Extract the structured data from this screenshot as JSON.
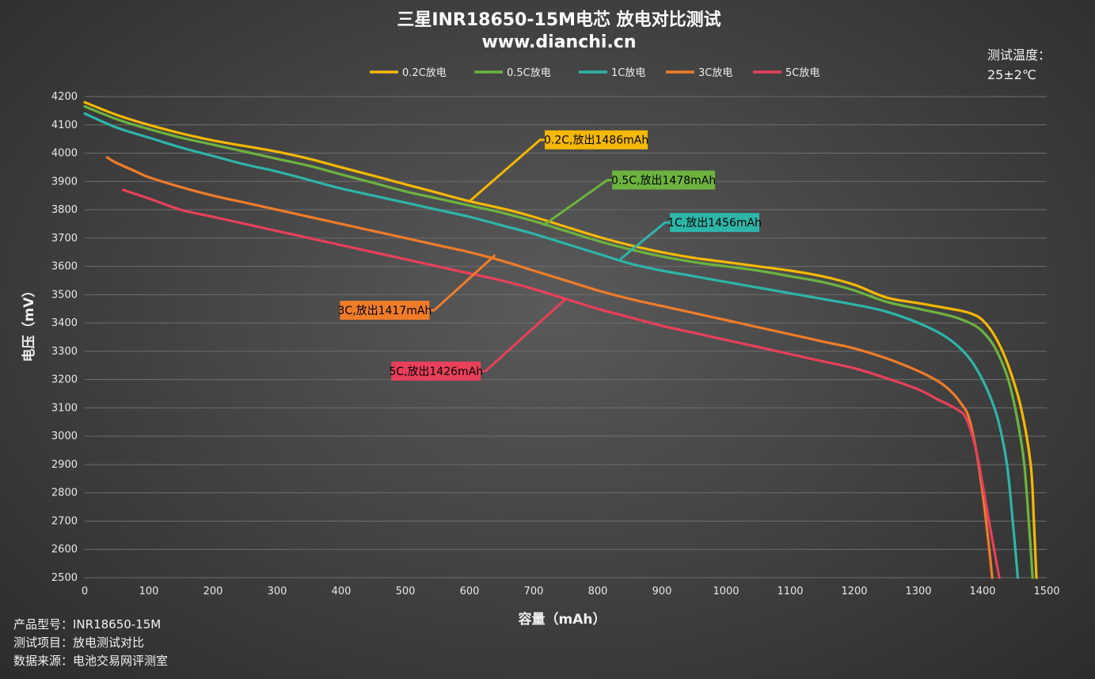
{
  "chart_data": {
    "type": "line",
    "title": "三星INR18650-15M电芯 放电对比测试",
    "subtitle": "www.dianchi.cn",
    "xlabel": "容量（mAh）",
    "ylabel": "电压（mV）",
    "xlim": [
      0,
      1500
    ],
    "ylim": [
      2500,
      4200
    ],
    "x_ticks": [
      "0",
      "100",
      "200",
      "300",
      "400",
      "500",
      "600",
      "700",
      "800",
      "900",
      "1000",
      "1100",
      "1200",
      "1300",
      "1400",
      "1500"
    ],
    "y_ticks": [
      "2500",
      "2600",
      "2700",
      "2800",
      "2900",
      "3000",
      "3100",
      "3200",
      "3300",
      "3400",
      "3500",
      "3600",
      "3700",
      "3800",
      "3900",
      "4000",
      "4100",
      "4200"
    ],
    "grid": "horizontal",
    "legend_position": "top-center",
    "series": [
      {
        "name": "0.2C放电",
        "color": "#f5b800",
        "callout": "0.2C,放出1486mAh",
        "points": [
          [
            0,
            4180
          ],
          [
            50,
            4135
          ],
          [
            100,
            4100
          ],
          [
            150,
            4070
          ],
          [
            200,
            4045
          ],
          [
            250,
            4025
          ],
          [
            300,
            4005
          ],
          [
            350,
            3980
          ],
          [
            400,
            3950
          ],
          [
            450,
            3920
          ],
          [
            500,
            3890
          ],
          [
            550,
            3860
          ],
          [
            600,
            3830
          ],
          [
            650,
            3805
          ],
          [
            700,
            3775
          ],
          [
            750,
            3740
          ],
          [
            800,
            3705
          ],
          [
            850,
            3675
          ],
          [
            900,
            3650
          ],
          [
            950,
            3630
          ],
          [
            1000,
            3615
          ],
          [
            1050,
            3600
          ],
          [
            1100,
            3585
          ],
          [
            1150,
            3565
          ],
          [
            1200,
            3535
          ],
          [
            1250,
            3490
          ],
          [
            1300,
            3470
          ],
          [
            1350,
            3450
          ],
          [
            1380,
            3435
          ],
          [
            1400,
            3410
          ],
          [
            1420,
            3350
          ],
          [
            1440,
            3250
          ],
          [
            1460,
            3100
          ],
          [
            1475,
            2900
          ],
          [
            1480,
            2700
          ],
          [
            1484,
            2500
          ]
        ]
      },
      {
        "name": "0.5C放电",
        "color": "#6db33f",
        "callout": "0.5C,放出1478mAh",
        "points": [
          [
            0,
            4165
          ],
          [
            50,
            4120
          ],
          [
            100,
            4085
          ],
          [
            150,
            4055
          ],
          [
            200,
            4030
          ],
          [
            250,
            4005
          ],
          [
            300,
            3980
          ],
          [
            350,
            3955
          ],
          [
            400,
            3925
          ],
          [
            450,
            3895
          ],
          [
            500,
            3865
          ],
          [
            550,
            3840
          ],
          [
            600,
            3815
          ],
          [
            650,
            3790
          ],
          [
            700,
            3760
          ],
          [
            750,
            3725
          ],
          [
            800,
            3690
          ],
          [
            850,
            3660
          ],
          [
            900,
            3635
          ],
          [
            950,
            3615
          ],
          [
            1000,
            3600
          ],
          [
            1050,
            3585
          ],
          [
            1100,
            3565
          ],
          [
            1150,
            3545
          ],
          [
            1200,
            3515
          ],
          [
            1250,
            3475
          ],
          [
            1300,
            3450
          ],
          [
            1350,
            3425
          ],
          [
            1380,
            3400
          ],
          [
            1400,
            3370
          ],
          [
            1420,
            3310
          ],
          [
            1440,
            3200
          ],
          [
            1455,
            3050
          ],
          [
            1465,
            2900
          ],
          [
            1472,
            2700
          ],
          [
            1478,
            2500
          ]
        ]
      },
      {
        "name": "1C放电",
        "color": "#2db5a8",
        "callout": "1C,放出1456mAh",
        "points": [
          [
            0,
            4140
          ],
          [
            50,
            4090
          ],
          [
            100,
            4055
          ],
          [
            150,
            4020
          ],
          [
            200,
            3990
          ],
          [
            250,
            3960
          ],
          [
            300,
            3935
          ],
          [
            350,
            3905
          ],
          [
            400,
            3875
          ],
          [
            450,
            3850
          ],
          [
            500,
            3825
          ],
          [
            550,
            3800
          ],
          [
            600,
            3775
          ],
          [
            650,
            3745
          ],
          [
            700,
            3715
          ],
          [
            750,
            3680
          ],
          [
            800,
            3645
          ],
          [
            850,
            3610
          ],
          [
            900,
            3585
          ],
          [
            950,
            3565
          ],
          [
            1000,
            3545
          ],
          [
            1050,
            3525
          ],
          [
            1100,
            3505
          ],
          [
            1150,
            3485
          ],
          [
            1200,
            3465
          ],
          [
            1250,
            3440
          ],
          [
            1300,
            3400
          ],
          [
            1340,
            3355
          ],
          [
            1370,
            3300
          ],
          [
            1390,
            3240
          ],
          [
            1410,
            3150
          ],
          [
            1425,
            3050
          ],
          [
            1438,
            2900
          ],
          [
            1447,
            2700
          ],
          [
            1455,
            2500
          ]
        ]
      },
      {
        "name": "3C放电",
        "color": "#f07c28",
        "callout": "3C,放出1417mAh",
        "points": [
          [
            35,
            3985
          ],
          [
            50,
            3965
          ],
          [
            80,
            3935
          ],
          [
            100,
            3915
          ],
          [
            150,
            3880
          ],
          [
            200,
            3850
          ],
          [
            250,
            3825
          ],
          [
            300,
            3800
          ],
          [
            350,
            3775
          ],
          [
            400,
            3750
          ],
          [
            450,
            3725
          ],
          [
            500,
            3700
          ],
          [
            550,
            3675
          ],
          [
            600,
            3650
          ],
          [
            650,
            3620
          ],
          [
            700,
            3585
          ],
          [
            750,
            3550
          ],
          [
            800,
            3515
          ],
          [
            850,
            3485
          ],
          [
            900,
            3460
          ],
          [
            950,
            3435
          ],
          [
            1000,
            3410
          ],
          [
            1050,
            3385
          ],
          [
            1100,
            3360
          ],
          [
            1150,
            3335
          ],
          [
            1200,
            3310
          ],
          [
            1250,
            3275
          ],
          [
            1300,
            3230
          ],
          [
            1330,
            3195
          ],
          [
            1350,
            3160
          ],
          [
            1365,
            3120
          ],
          [
            1378,
            3070
          ],
          [
            1390,
            2950
          ],
          [
            1400,
            2800
          ],
          [
            1408,
            2650
          ],
          [
            1415,
            2500
          ]
        ]
      },
      {
        "name": "5C放电",
        "color": "#e8405a",
        "callout": "5C,放出1426mAh",
        "points": [
          [
            60,
            3870
          ],
          [
            100,
            3840
          ],
          [
            150,
            3800
          ],
          [
            200,
            3775
          ],
          [
            250,
            3750
          ],
          [
            300,
            3725
          ],
          [
            350,
            3700
          ],
          [
            400,
            3675
          ],
          [
            450,
            3650
          ],
          [
            500,
            3625
          ],
          [
            550,
            3600
          ],
          [
            600,
            3575
          ],
          [
            650,
            3550
          ],
          [
            700,
            3520
          ],
          [
            750,
            3485
          ],
          [
            800,
            3450
          ],
          [
            850,
            3420
          ],
          [
            900,
            3390
          ],
          [
            950,
            3365
          ],
          [
            1000,
            3340
          ],
          [
            1050,
            3315
          ],
          [
            1100,
            3290
          ],
          [
            1150,
            3265
          ],
          [
            1200,
            3240
          ],
          [
            1250,
            3205
          ],
          [
            1300,
            3165
          ],
          [
            1330,
            3130
          ],
          [
            1360,
            3095
          ],
          [
            1375,
            3060
          ],
          [
            1390,
            2950
          ],
          [
            1400,
            2830
          ],
          [
            1410,
            2700
          ],
          [
            1418,
            2600
          ],
          [
            1426,
            2500
          ]
        ]
      }
    ],
    "callouts": [
      {
        "series": 0,
        "anchor": [
          600,
          3830
        ],
        "label_at": [
          710,
          4047
        ]
      },
      {
        "series": 1,
        "anchor": [
          715,
          3745
        ],
        "label_at": [
          815,
          3905
        ]
      },
      {
        "series": 2,
        "anchor": [
          835,
          3625
        ],
        "label_at": [
          905,
          3755
        ]
      },
      {
        "series": 3,
        "anchor": [
          640,
          3640
        ],
        "label_at": [
          545,
          3445
        ]
      },
      {
        "series": 4,
        "anchor": [
          750,
          3485
        ],
        "label_at": [
          625,
          3230
        ]
      }
    ]
  },
  "temperature": {
    "label": "测试温度：",
    "value": "25±2℃"
  },
  "footer": {
    "model": "产品型号：INR18650-15M",
    "item": "测试项目：放电测试对比",
    "source": "数据来源：电池交易网评测室"
  }
}
